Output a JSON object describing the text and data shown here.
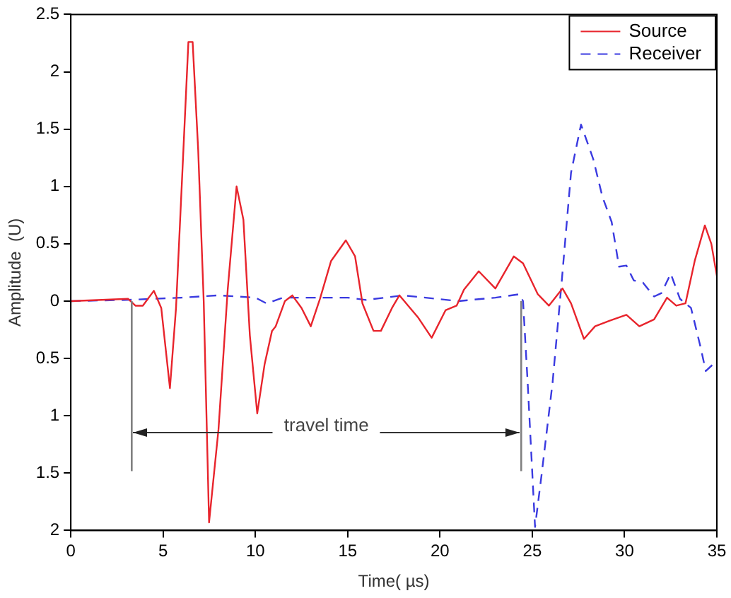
{
  "chart_data": {
    "type": "line",
    "xlabel": "Time( µs)",
    "ylabel": "Amplitude  (U)",
    "xlim": [
      0,
      35
    ],
    "xticks": [
      0,
      5,
      10,
      15,
      20,
      25,
      30,
      35
    ],
    "ylim": [
      -2,
      2.5
    ],
    "yticks": [
      {
        "value": -2,
        "label": "2"
      },
      {
        "value": -1.5,
        "label": "1.5"
      },
      {
        "value": -1,
        "label": "1"
      },
      {
        "value": -0.5,
        "label": "0.5"
      },
      0,
      0.5,
      1,
      1.5,
      2,
      2.5
    ],
    "grid": false,
    "legend": "top right",
    "marker": "none",
    "ref_lines": [
      {
        "axis": "x",
        "value": 3.3,
        "color": "#808080"
      },
      {
        "axis": "x",
        "value": 24.4,
        "color": "#808080"
      }
    ],
    "annotations": [
      {
        "text": "travel time",
        "x": 24.4,
        "y": -1.15
      }
    ],
    "series": [
      {
        "name": "Source",
        "color": "#e8242c",
        "line_style": "solid",
        "x": [
          0,
          3.1,
          3.5,
          3.9,
          4.5,
          4.9,
          5.37,
          5.7,
          6.1,
          6.37,
          6.6,
          6.9,
          7.2,
          7.49,
          8.0,
          8.5,
          8.98,
          9.35,
          9.7,
          10.1,
          10.5,
          10.9,
          11.1,
          11.6,
          12.0,
          12.5,
          13.0,
          13.5,
          14.1,
          14.9,
          15.4,
          15.8,
          16.4,
          16.8,
          17.4,
          17.8,
          18.8,
          19.55,
          20.3,
          20.9,
          21.3,
          22.1,
          23.0,
          24.0,
          24.5,
          25.3,
          25.9,
          26.64,
          27.1,
          27.8,
          28.4,
          29.2,
          30.1,
          30.8,
          31.6,
          32.3,
          32.8,
          33.3,
          33.8,
          34.35,
          34.7,
          35
        ],
        "values": [
          0,
          0.02,
          -0.04,
          -0.04,
          0.09,
          -0.06,
          -0.76,
          -0.06,
          1.32,
          2.26,
          2.26,
          1.32,
          0,
          -1.93,
          -1.12,
          0.1,
          1.0,
          0.71,
          -0.3,
          -0.98,
          -0.55,
          -0.26,
          -0.22,
          0,
          0.05,
          -0.06,
          -0.22,
          0.02,
          0.35,
          0.53,
          0.39,
          -0.02,
          -0.26,
          -0.26,
          -0.06,
          0.05,
          -0.14,
          -0.32,
          -0.08,
          -0.04,
          0.1,
          0.26,
          0.11,
          0.39,
          0.33,
          0.06,
          -0.04,
          0.11,
          -0.02,
          -0.33,
          -0.22,
          -0.17,
          -0.12,
          -0.22,
          -0.16,
          0.03,
          -0.04,
          -0.02,
          0.35,
          0.66,
          0.5,
          0.22
        ]
      },
      {
        "name": "Receiver",
        "color": "#3a3ae0",
        "line_style": "dashed",
        "x": [
          0,
          3,
          6,
          8,
          10,
          10.6,
          11.5,
          13,
          15,
          16,
          18,
          21,
          23,
          24.3,
          24.5,
          24.75,
          25.15,
          25.5,
          26.1,
          26.6,
          27.1,
          27.64,
          28.3,
          28.8,
          29.3,
          29.7,
          30.1,
          30.5,
          31.0,
          31.6,
          32.0,
          32.5,
          33.0,
          33.6,
          34.1,
          34.4,
          34.8,
          35
        ],
        "values": [
          0,
          0.01,
          0.03,
          0.05,
          0.03,
          -0.02,
          0.03,
          0.03,
          0.03,
          0.01,
          0.05,
          0,
          0.03,
          0.06,
          0,
          -0.71,
          -1.97,
          -1.52,
          -0.71,
          0.18,
          1.12,
          1.54,
          1.24,
          0.91,
          0.69,
          0.3,
          0.31,
          0.18,
          0.16,
          0.04,
          0.07,
          0.24,
          0.02,
          -0.06,
          -0.39,
          -0.61,
          -0.55,
          -0.53
        ]
      }
    ]
  }
}
